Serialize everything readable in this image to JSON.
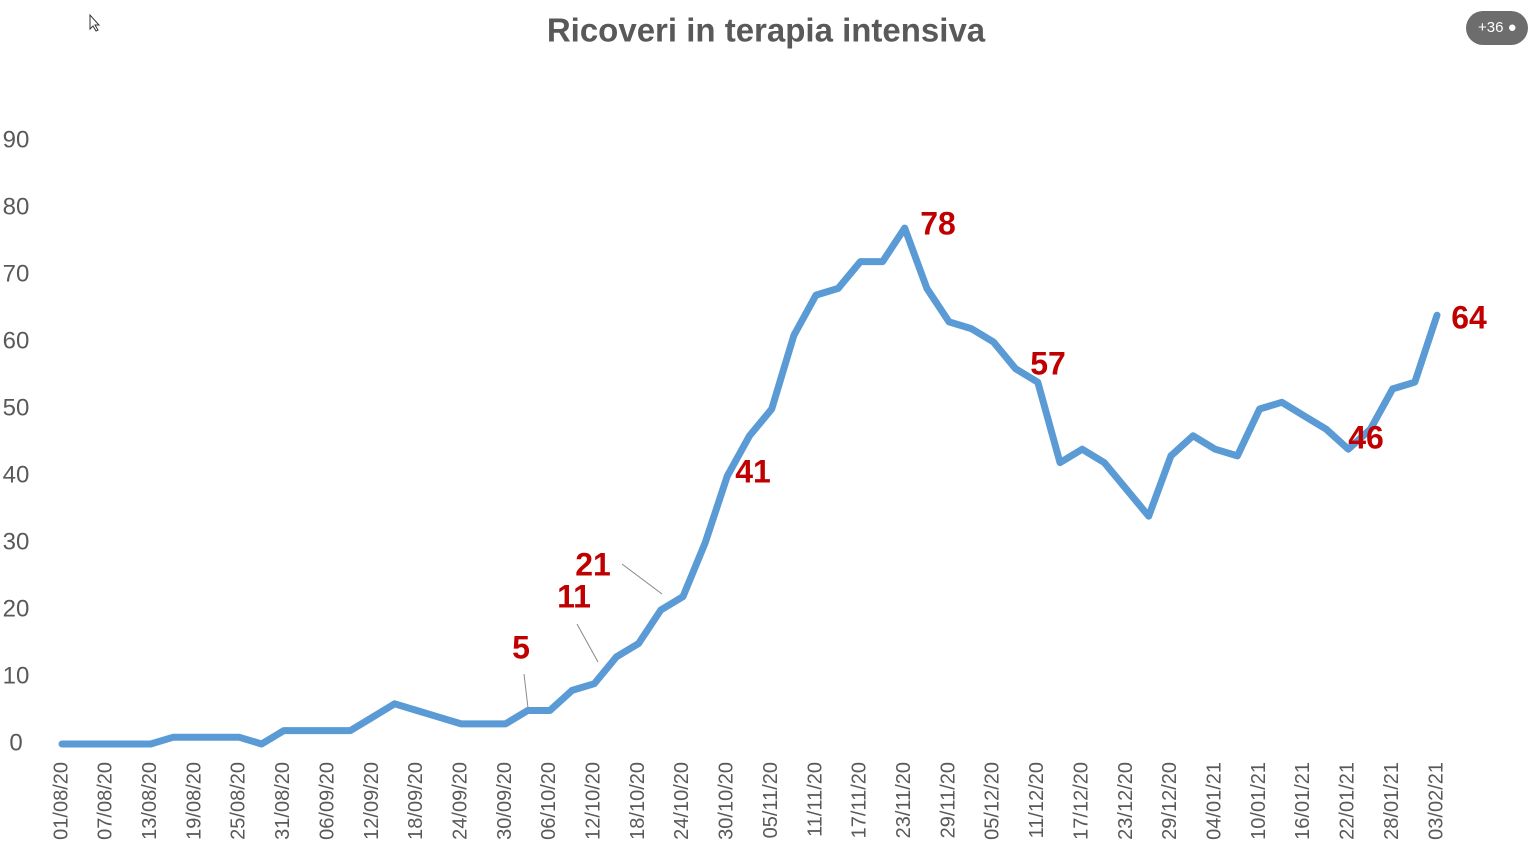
{
  "chart_data": {
    "type": "line",
    "title": "Ricoveri in terapia intensiva",
    "categories": [
      "01/08/20",
      null,
      "07/08/20",
      null,
      "13/08/20",
      null,
      "19/08/20",
      null,
      "25/08/20",
      null,
      "31/08/20",
      null,
      "06/09/20",
      null,
      "12/09/20",
      null,
      "18/09/20",
      null,
      "24/09/20",
      null,
      "30/09/20",
      null,
      "06/10/20",
      null,
      "12/10/20",
      null,
      "18/10/20",
      null,
      "24/10/20",
      null,
      "30/10/20",
      null,
      "05/11/20",
      null,
      "11/11/20",
      null,
      "17/11/20",
      null,
      "23/11/20",
      null,
      "29/11/20",
      null,
      "05/12/20",
      null,
      "11/12/20",
      null,
      "17/12/20",
      null,
      "23/12/20",
      null,
      "29/12/20",
      null,
      "04/01/21",
      null,
      "10/01/21",
      null,
      "16/01/21",
      null,
      "22/01/21",
      null,
      "28/01/21",
      null,
      "03/02/21"
    ],
    "series": [
      {
        "name": "Ricoveri",
        "color": "#5b9bd5",
        "values": [
          0,
          0,
          0,
          0,
          0,
          1,
          1,
          1,
          1,
          0,
          2,
          2,
          2,
          2,
          4,
          6,
          5,
          4,
          3,
          3,
          3,
          5,
          5,
          8,
          9,
          13,
          15,
          20,
          22,
          30,
          40,
          46,
          50,
          61,
          67,
          68,
          72,
          72,
          77,
          68,
          63,
          62,
          60,
          56,
          54,
          42,
          44,
          42,
          38,
          34,
          43,
          46,
          44,
          43,
          50,
          51,
          49,
          47,
          44,
          47,
          53,
          54,
          64
        ]
      }
    ],
    "ylim": [
      0,
      90
    ],
    "yticks": [
      0,
      10,
      20,
      30,
      40,
      50,
      60,
      70,
      80,
      90
    ],
    "annotations": [
      "5",
      "11",
      "21",
      "41",
      "78",
      "57",
      "46",
      "64"
    ]
  },
  "ui": {
    "badge": "+36"
  }
}
